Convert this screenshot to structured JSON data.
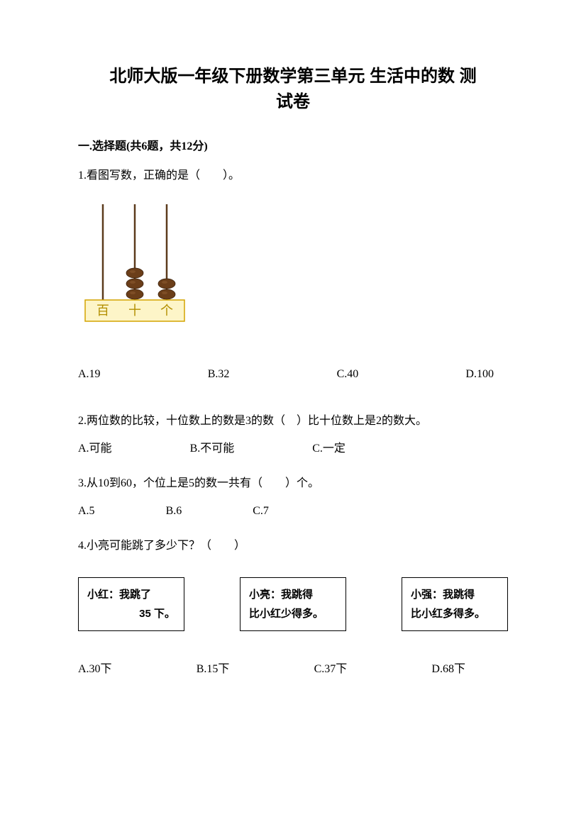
{
  "title_line1": "北师大版一年级下册数学第三单元 生活中的数 测",
  "title_line2": "试卷",
  "section1_header": "一.选择题(共6题，共12分)",
  "q1": {
    "text": "1.看图写数，正确的是（　　）。",
    "options": {
      "A": "A.19",
      "B": "B.32",
      "C": "C.40",
      "D": "D.100"
    }
  },
  "abacus": {
    "labels": [
      "百",
      "十",
      "个"
    ],
    "beads": [
      0,
      3,
      2
    ],
    "base_fill": "#fdf5c8",
    "base_stroke": "#d4a400",
    "rod_color": "#5c3b1c",
    "bead_fill": "#6b3e19",
    "bead_highlight": "#8a5a2f",
    "font_color": "#b38f00"
  },
  "q2": {
    "text": "2.两位数的比较，十位数上的数是3的数（　）比十位数上是2的数大。",
    "options": {
      "A": "A.可能",
      "B": "B.不可能",
      "C": "C.一定"
    }
  },
  "q3": {
    "text": "3.从10到60，个位上是5的数一共有（　　）个。",
    "options": {
      "A": "A.5",
      "B": "B.6",
      "C": "C.7"
    }
  },
  "q4": {
    "text": "4.小亮可能跳了多少下？（　　）",
    "boxes": [
      {
        "line1": "小红：我跳了",
        "line2": "35 下。",
        "align2": "right"
      },
      {
        "line1": "小亮：我跳得",
        "line2": "比小红少得多。",
        "align2": "left"
      },
      {
        "line1": "小强：我跳得",
        "line2": "比小红多得多。",
        "align2": "left"
      }
    ],
    "options": {
      "A": "A.30下",
      "B": "B.15下",
      "C": "C.37下",
      "D": "D.68下"
    }
  }
}
